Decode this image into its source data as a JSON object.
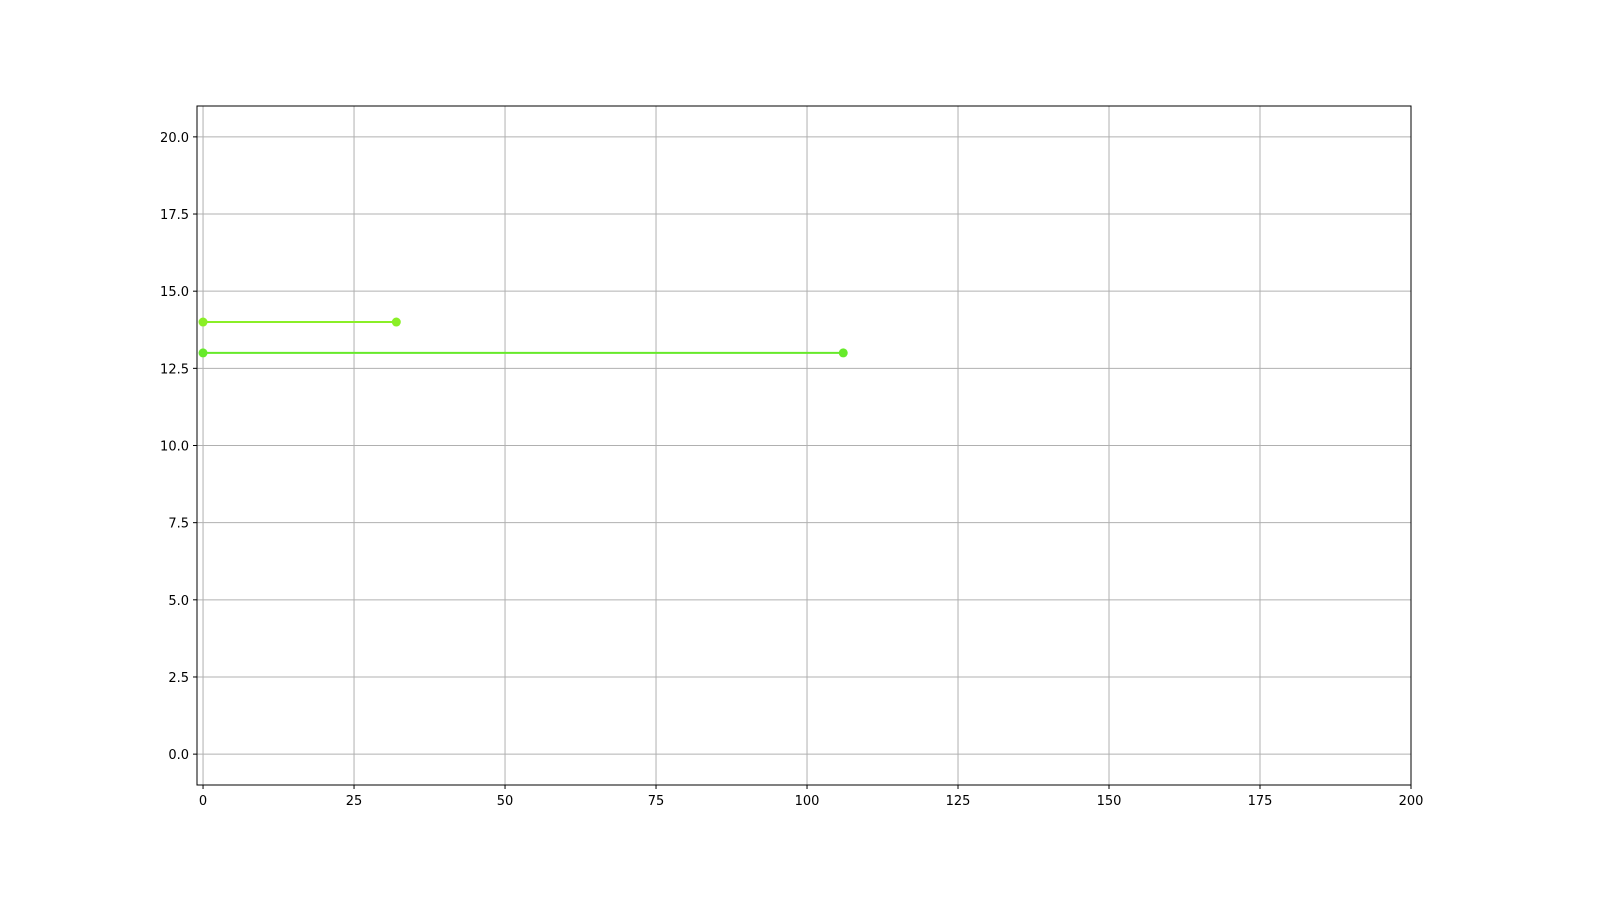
{
  "chart_data": {
    "type": "line",
    "title": "",
    "xlabel": "",
    "ylabel": "",
    "xlim": [
      -1,
      200
    ],
    "ylim": [
      -1,
      21
    ],
    "grid": true,
    "xticks": [
      0,
      25,
      50,
      75,
      100,
      125,
      150,
      175,
      200
    ],
    "xtick_labels": [
      "0",
      "25",
      "50",
      "75",
      "100",
      "125",
      "150",
      "175",
      "200"
    ],
    "yticks": [
      0,
      2.5,
      5,
      7.5,
      10,
      12.5,
      15,
      17.5,
      20
    ],
    "ytick_labels": [
      "0.0",
      "2.5",
      "5.0",
      "7.5",
      "10.0",
      "12.5",
      "15.0",
      "17.5",
      "20.0"
    ],
    "series": [
      {
        "x": [
          0,
          32
        ],
        "y": [
          14,
          14
        ],
        "color": "#8aef26",
        "marker": "circle"
      },
      {
        "x": [
          0,
          106
        ],
        "y": [
          13,
          13
        ],
        "color": "#66ea2a",
        "marker": "circle"
      }
    ]
  }
}
